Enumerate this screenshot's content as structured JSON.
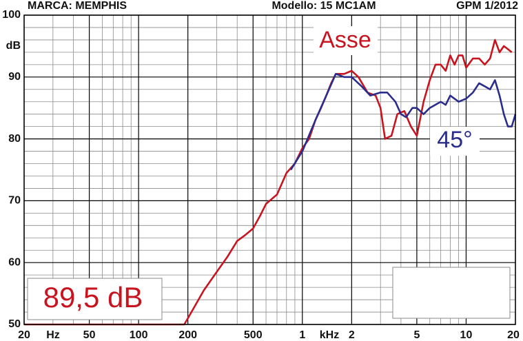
{
  "chart_data": {
    "type": "line",
    "title_left": "MARCA: MEMPHIS",
    "title_center": "Modello: 15 MC1AM",
    "title_right": "GPM 1/2012",
    "ylabel": "dB",
    "xlabel": "Hz",
    "xlabel_k": "kHz",
    "annotations": {
      "asse": "Asse",
      "angle": "45°",
      "sensitivity": "89,5 dB"
    },
    "log_x": true,
    "xlim": [
      20,
      20000
    ],
    "ylim": [
      50,
      100
    ],
    "xticks": [
      20,
      50,
      100,
      200,
      500,
      {
        "value": 1000,
        "label": "1"
      },
      {
        "value": 2000,
        "label": "2"
      },
      {
        "value": 5000,
        "label": "5"
      },
      {
        "value": 10000,
        "label": "10"
      },
      {
        "value": 20000,
        "label": "20"
      }
    ],
    "yticks": [
      50,
      60,
      70,
      80,
      90,
      100
    ],
    "xminor": [
      30,
      40,
      60,
      70,
      80,
      90,
      300,
      400,
      600,
      700,
      800,
      900,
      3000,
      4000,
      6000,
      7000,
      8000,
      9000
    ],
    "yminor": [
      52,
      54,
      56,
      58,
      62,
      64,
      66,
      68,
      72,
      74,
      76,
      78,
      82,
      84,
      86,
      88,
      92,
      94,
      96,
      98
    ],
    "grid": true,
    "series": [
      {
        "name": "Asse",
        "color": "#c8141e",
        "x": [
          20,
          190,
          200,
          250,
          300,
          350,
          400,
          450,
          500,
          550,
          600,
          700,
          800,
          900,
          1000,
          1100,
          1200,
          1300,
          1400,
          1500,
          1600,
          1800,
          2000,
          2200,
          2500,
          2800,
          3000,
          3200,
          3500,
          3800,
          4200,
          4600,
          5000,
          5500,
          6000,
          6500,
          7000,
          7500,
          8000,
          8500,
          9000,
          9500,
          10000,
          11000,
          12000,
          13000,
          14000,
          15000,
          16000,
          17000,
          18000,
          19000
        ],
        "values": [
          50,
          50,
          51,
          55.5,
          58.5,
          61,
          63.5,
          64.5,
          65.5,
          67.5,
          69.5,
          71,
          74.5,
          76,
          78.5,
          80,
          83,
          85,
          87,
          89,
          90.5,
          90.5,
          91,
          90,
          87.5,
          87,
          85,
          80,
          80.5,
          84,
          84.5,
          82,
          80.5,
          86,
          89.5,
          92,
          92,
          91,
          93.5,
          92,
          93.5,
          93.5,
          91.5,
          93,
          93,
          92,
          93,
          96,
          94,
          95,
          94.5,
          94
        ]
      },
      {
        "name": "45°",
        "color": "#2b2d8c",
        "x": [
          850,
          1000,
          1200,
          1400,
          1600,
          1800,
          2000,
          2300,
          2600,
          3000,
          3300,
          3700,
          4000,
          4300,
          4700,
          5000,
          5500,
          6000,
          7000,
          7500,
          8000,
          9000,
          10000,
          11000,
          12000,
          13000,
          14000,
          15000,
          16000,
          17000,
          18000,
          19000,
          20000
        ],
        "values": [
          75,
          78,
          83,
          87,
          90.5,
          90,
          90,
          88.5,
          87,
          87.5,
          87.5,
          86,
          84,
          83.5,
          85,
          85,
          84,
          85,
          86,
          85.5,
          87,
          86,
          86.5,
          87.5,
          89,
          88.5,
          88,
          89.5,
          87,
          84,
          82,
          82,
          84
        ]
      }
    ]
  }
}
